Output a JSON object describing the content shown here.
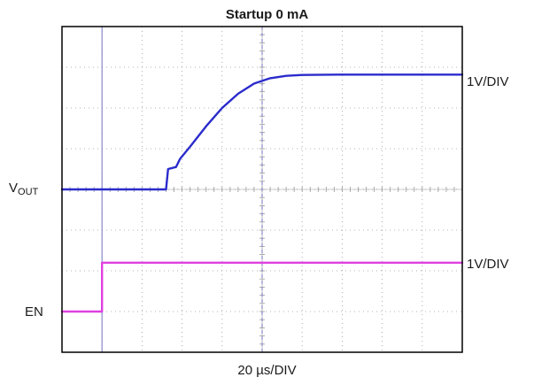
{
  "chart_data": {
    "type": "line",
    "title": "Startup 0 mA",
    "xlabel": "20 µs/DIV",
    "x_unit": "µs",
    "x_per_div": 20,
    "divisions": {
      "x": 10,
      "y": 8
    },
    "grid": true,
    "colors": {
      "vout": "#2b2bcc",
      "en": "#e040e0",
      "cursor": "#8888cc",
      "grid": "#9a9a9a",
      "frame": "#000000"
    },
    "cursors_div": [
      1,
      5
    ],
    "series": [
      {
        "name": "VOUT",
        "label_main": "V",
        "label_sub": "OUT",
        "scale": "1V/DIV",
        "baseline_div": 4,
        "points_div": [
          [
            0,
            0
          ],
          [
            1.0,
            0
          ],
          [
            2.6,
            0
          ],
          [
            2.65,
            0.5
          ],
          [
            2.85,
            0.55
          ],
          [
            2.95,
            0.75
          ],
          [
            3.2,
            1.05
          ],
          [
            3.6,
            1.55
          ],
          [
            4.0,
            2.0
          ],
          [
            4.4,
            2.35
          ],
          [
            4.8,
            2.6
          ],
          [
            5.2,
            2.73
          ],
          [
            5.6,
            2.79
          ],
          [
            6.0,
            2.81
          ],
          [
            7.0,
            2.82
          ],
          [
            10,
            2.82
          ]
        ]
      },
      {
        "name": "EN",
        "label_main": "EN",
        "scale": "1V/DIV",
        "baseline_div": 1,
        "points_div": [
          [
            0,
            0
          ],
          [
            1.0,
            0
          ],
          [
            1.0,
            1.2
          ],
          [
            10,
            1.2
          ]
        ]
      }
    ]
  }
}
